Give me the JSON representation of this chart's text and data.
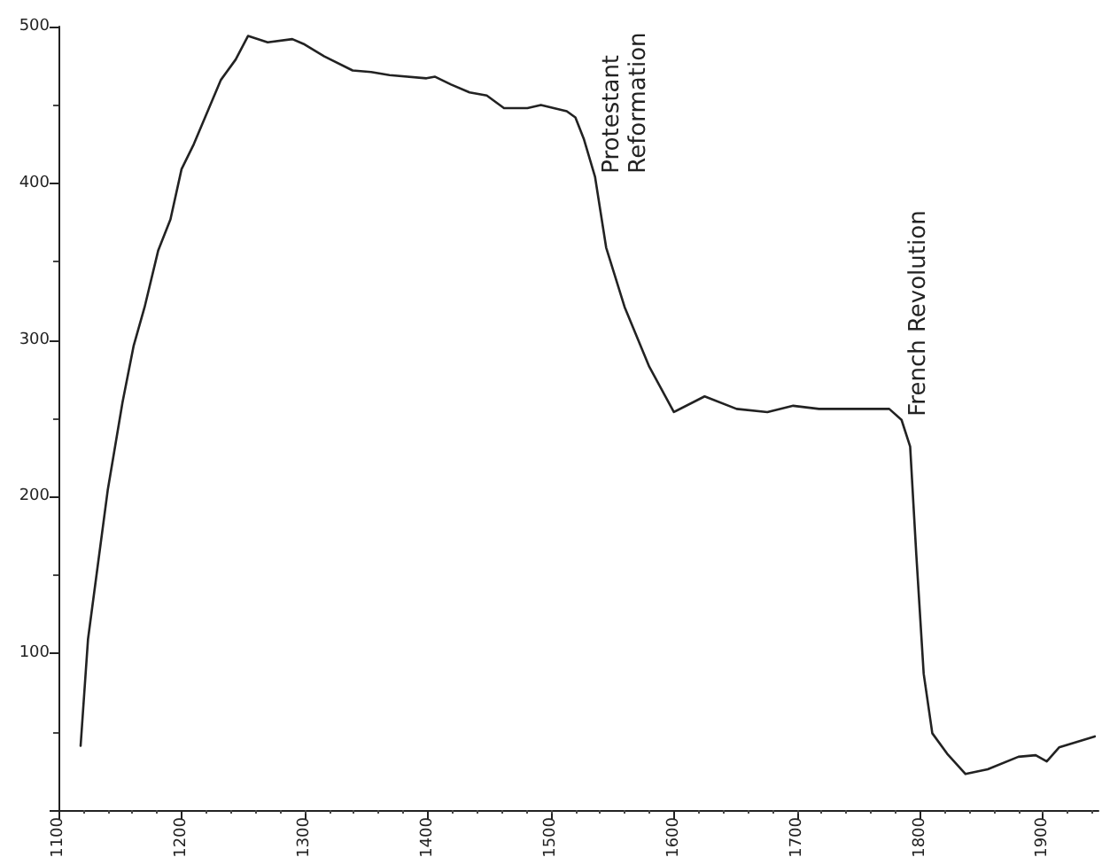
{
  "chart_data": {
    "type": "line",
    "x": [
      1118,
      1124,
      1140,
      1152,
      1161,
      1170,
      1181,
      1191,
      1200,
      1210,
      1232,
      1244,
      1254,
      1270,
      1290,
      1299,
      1316,
      1339,
      1354,
      1369,
      1399,
      1406,
      1419,
      1434,
      1448,
      1462,
      1481,
      1492,
      1513,
      1520,
      1527,
      1536,
      1545,
      1560,
      1580,
      1600,
      1625,
      1651,
      1676,
      1697,
      1718,
      1775,
      1785,
      1792,
      1797,
      1803,
      1810,
      1822,
      1837,
      1855,
      1880,
      1894,
      1903,
      1913,
      1942
    ],
    "series": [
      {
        "color": "#222222",
        "values": [
          41,
          109,
          204,
          260,
          296,
          321,
          357,
          377,
          409,
          425,
          466,
          479,
          494,
          490,
          492,
          489,
          481,
          472,
          471,
          469,
          467,
          468,
          463,
          458,
          456,
          448,
          448,
          450,
          446,
          442,
          428,
          404,
          359,
          321,
          283,
          254,
          264,
          256,
          254,
          258,
          256,
          256,
          249,
          232,
          163,
          87,
          49,
          36,
          23,
          26,
          34,
          35,
          31,
          40,
          47
        ]
      }
    ],
    "xlim": [
      1100,
      1945
    ],
    "xticks": [
      1100,
      1200,
      1300,
      1400,
      1500,
      1600,
      1700,
      1800,
      1900
    ],
    "ylim": [
      0,
      500
    ],
    "yticks": [
      {
        "value": 0,
        "label": null
      },
      100,
      200,
      300,
      400,
      500
    ],
    "grid": false,
    "marker": "none",
    "line_style": "solid",
    "annotations": [
      {
        "text": "Protestant Reformation",
        "x": 1536,
        "y": 404
      },
      {
        "text": "French Revolution",
        "x": 1785,
        "y": 249
      }
    ]
  }
}
